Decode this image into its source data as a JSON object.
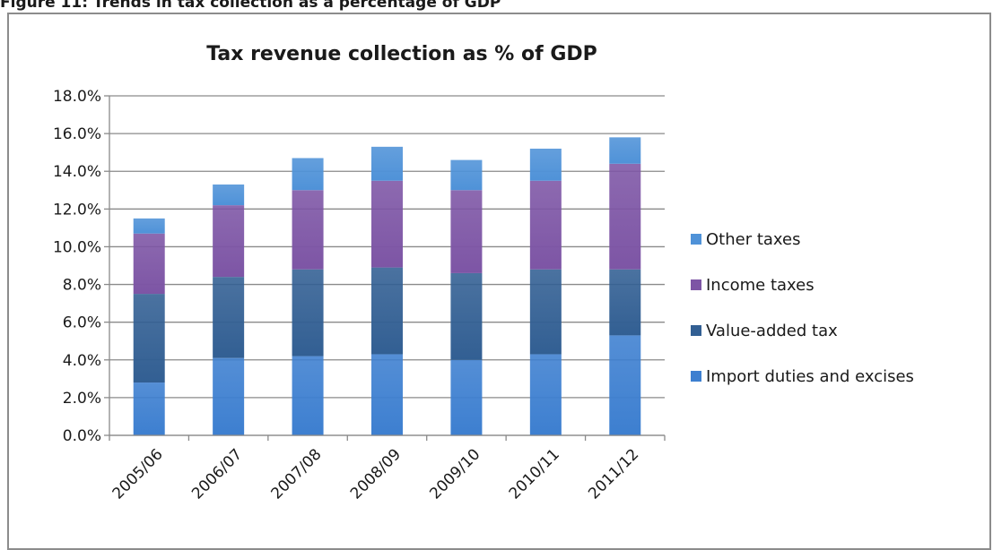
{
  "caption": "Figure 11: Trends in tax collection as a percentage of GDP",
  "chart_data": {
    "type": "bar",
    "stacked": true,
    "title": "Tax revenue collection as % of GDP",
    "xlabel": "",
    "ylabel": "",
    "ylim": [
      0,
      18
    ],
    "ytick_step": 2,
    "ytick_format": "{v}.0%",
    "grid": true,
    "legend_position": "right",
    "categories": [
      "2005/06",
      "2006/07",
      "2007/08",
      "2008/09",
      "2009/10",
      "2010/11",
      "2011/12"
    ],
    "series": [
      {
        "name": "Import duties and excises",
        "color": "#3d7fd0",
        "values": [
          2.8,
          4.1,
          4.2,
          4.3,
          4.0,
          4.3,
          5.3
        ]
      },
      {
        "name": "Value-added tax",
        "color": "#325f93",
        "values": [
          4.7,
          4.3,
          4.6,
          4.6,
          4.6,
          4.5,
          3.5
        ]
      },
      {
        "name": "Income taxes",
        "color": "#7d55a5",
        "values": [
          3.2,
          3.8,
          4.2,
          4.6,
          4.4,
          4.7,
          5.6
        ]
      },
      {
        "name": "Other taxes",
        "color": "#4f92d8",
        "values": [
          0.8,
          1.1,
          1.7,
          1.8,
          1.6,
          1.7,
          1.4
        ]
      }
    ],
    "yticks": [
      "0.0%",
      "2.0%",
      "4.0%",
      "6.0%",
      "8.0%",
      "10.0%",
      "12.0%",
      "14.0%",
      "16.0%",
      "18.0%"
    ]
  }
}
